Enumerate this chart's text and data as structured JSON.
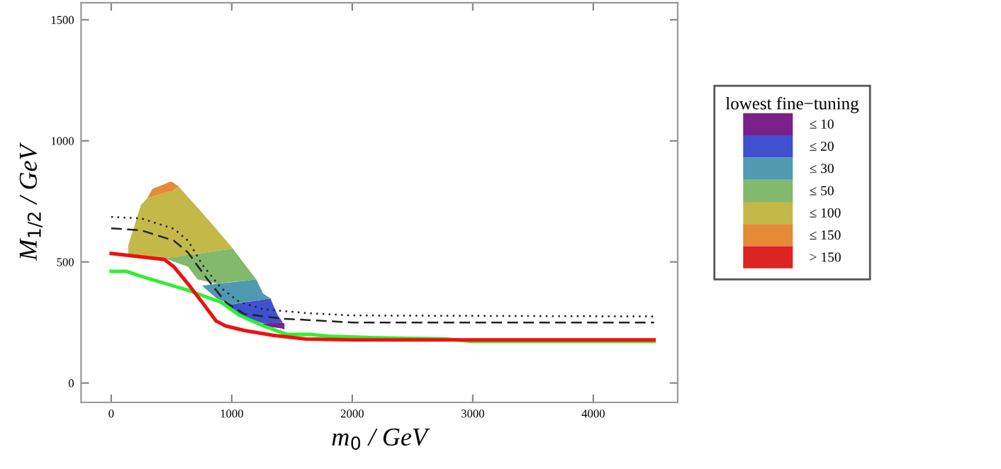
{
  "chart_data": {
    "type": "area",
    "xlabel": "m$_{0}$ / GeV",
    "ylabel": "M$_{1/2}$ / GeV",
    "legend_title": "lowest fine−tuning",
    "legend": "right",
    "xlim": [
      -250,
      4700
    ],
    "ylim": [
      -80,
      1570
    ],
    "xticks": [
      0,
      1000,
      2000,
      3000,
      4000
    ],
    "yticks": [
      0,
      500,
      1000,
      1500
    ],
    "grid": false,
    "series": [
      {
        "name": "≤ 10",
        "color": "#7b1f8a",
        "x": [
          1262,
          1418,
          1437,
          1437,
          1418,
          1262
        ],
        "values": [
          246,
          250,
          246,
          221,
          225,
          236
        ]
      },
      {
        "name": "≤ 20",
        "color": "#3f51d0",
        "x": [
          910,
          988,
          1066,
          1262,
          1320,
          1380,
          1418,
          1418,
          1380,
          1320,
          1262,
          1066,
          988
        ],
        "values": [
          334,
          324,
          330,
          345,
          350,
          281,
          255,
          250,
          248,
          247,
          246,
          279,
          306
        ]
      },
      {
        "name": "≤ 30",
        "color": "#4f9ab0",
        "x": [
          754,
          871,
          988,
          1100,
          1203,
          1260,
          1320,
          1260,
          1203,
          1100,
          988,
          871
        ],
        "values": [
          402,
          410,
          416,
          422,
          428,
          370,
          350,
          345,
          341,
          333,
          324,
          351
        ]
      },
      {
        "name": "≤ 50",
        "color": "#82b96c",
        "x": [
          441,
          637,
          715,
          871,
          1010,
          1100,
          1203,
          1100,
          1010,
          871,
          715,
          637
        ],
        "values": [
          515,
          529,
          534,
          545,
          555,
          495,
          428,
          422,
          418,
          410,
          428,
          480
        ]
      },
      {
        "name": "≤ 100",
        "color": "#c3b948",
        "x": [
          141,
          246,
          300,
          344,
          441,
          480,
          500,
          559,
          637,
          715,
          871,
          1010,
          871,
          715,
          637,
          559,
          500,
          480,
          441,
          344,
          300,
          246,
          141
        ],
        "values": [
          568,
          734,
          765,
          770,
          785,
          790,
          790,
          812,
          768,
          725,
          637,
          555,
          545,
          534,
          529,
          522,
          519,
          518,
          515,
          515,
          515,
          515,
          520
        ]
      },
      {
        "name": "≤ 150",
        "color": "#e68a35",
        "x": [
          300,
          344,
          441,
          480,
          500,
          559,
          500,
          480,
          441,
          344
        ],
        "values": [
          765,
          803,
          821,
          830,
          832,
          812,
          790,
          790,
          785,
          770
        ]
      },
      {
        "name": "> 150",
        "color": "#dc2424"
      },
      {
        "color": "#222222",
        "type": "line",
        "line_style": "dotted",
        "x": [
          0,
          246,
          520,
          637,
          754,
          910,
          1066,
          1262,
          1613,
          2004,
          4504
        ],
        "values": [
          686,
          680,
          637,
          588,
          490,
          393,
          334,
          305,
          289,
          279,
          275
        ]
      },
      {
        "color": "#222222",
        "type": "line",
        "line_style": "dashed",
        "x": [
          0,
          246,
          520,
          637,
          793,
          949,
          1105,
          1418,
          2004,
          4504
        ],
        "values": [
          639,
          631,
          588,
          539,
          432,
          334,
          285,
          266,
          250,
          250
        ]
      },
      {
        "color": "#33ee33",
        "type": "line",
        "line_style": "solid",
        "x": [
          0,
          129,
          246,
          637,
          910,
          1066,
          1262,
          1457,
          1652,
          1809,
          2199,
          2785,
          2980,
          4504
        ],
        "values": [
          461,
          461,
          441,
          383,
          334,
          279,
          236,
          201,
          201,
          193,
          187,
          182,
          172,
          172
        ]
      },
      {
        "color": "#ee1111",
        "type": "line",
        "line_style": "solid",
        "x": [
          0,
          441,
          520,
          633,
          754,
          871,
          949,
          1105,
          1340,
          1613,
          2004,
          4504
        ],
        "values": [
          535,
          510,
          480,
          412,
          334,
          256,
          236,
          217,
          197,
          182,
          178,
          178
        ]
      }
    ]
  }
}
